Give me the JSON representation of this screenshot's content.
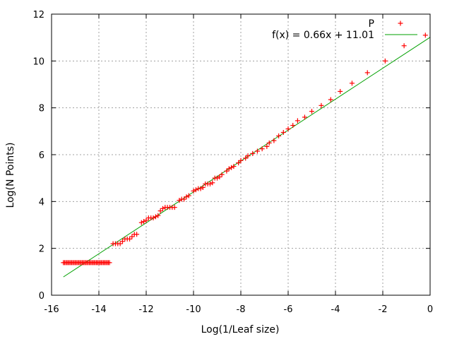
{
  "chart_data": {
    "type": "scatter",
    "xlabel": "Log(1/Leaf size)",
    "ylabel": "Log(N Points)",
    "xlim": [
      -16,
      0
    ],
    "ylim": [
      0,
      12
    ],
    "xticks": [
      "-16",
      "-14",
      "-12",
      "-10",
      "-8",
      "-6",
      "-4",
      "-2",
      "0"
    ],
    "yticks": [
      "0",
      "2",
      "4",
      "6",
      "8",
      "10",
      "12"
    ],
    "grid": true,
    "legend_position": "top-right",
    "colors": {
      "points": "#ff0000",
      "fit": "#00a000"
    },
    "series": [
      {
        "name": "P",
        "marker": "plus",
        "color": "#ff0000",
        "flat_run": {
          "x_from": -15.5,
          "x_to": -13.55,
          "y": 1.39
        },
        "points": [
          [
            -13.4,
            2.2
          ],
          [
            -13.3,
            2.2
          ],
          [
            -13.2,
            2.2
          ],
          [
            -13.1,
            2.2
          ],
          [
            -13.0,
            2.3
          ],
          [
            -12.9,
            2.4
          ],
          [
            -12.8,
            2.4
          ],
          [
            -12.7,
            2.4
          ],
          [
            -12.6,
            2.5
          ],
          [
            -12.5,
            2.6
          ],
          [
            -12.4,
            2.6
          ],
          [
            -12.2,
            3.1
          ],
          [
            -12.1,
            3.15
          ],
          [
            -12.0,
            3.2
          ],
          [
            -11.9,
            3.3
          ],
          [
            -11.8,
            3.3
          ],
          [
            -11.7,
            3.3
          ],
          [
            -11.6,
            3.35
          ],
          [
            -11.5,
            3.4
          ],
          [
            -11.4,
            3.6
          ],
          [
            -11.3,
            3.7
          ],
          [
            -11.2,
            3.75
          ],
          [
            -11.1,
            3.75
          ],
          [
            -11.0,
            3.75
          ],
          [
            -10.9,
            3.75
          ],
          [
            -10.8,
            3.75
          ],
          [
            -10.6,
            4.05
          ],
          [
            -10.5,
            4.1
          ],
          [
            -10.4,
            4.1
          ],
          [
            -10.3,
            4.2
          ],
          [
            -10.2,
            4.25
          ],
          [
            -10.0,
            4.45
          ],
          [
            -9.9,
            4.5
          ],
          [
            -9.8,
            4.55
          ],
          [
            -9.7,
            4.55
          ],
          [
            -9.6,
            4.6
          ],
          [
            -9.5,
            4.75
          ],
          [
            -9.4,
            4.75
          ],
          [
            -9.3,
            4.75
          ],
          [
            -9.2,
            4.8
          ],
          [
            -9.1,
            5.0
          ],
          [
            -9.0,
            5.0
          ],
          [
            -8.9,
            5.05
          ],
          [
            -8.8,
            5.15
          ],
          [
            -8.6,
            5.3
          ],
          [
            -8.5,
            5.4
          ],
          [
            -8.4,
            5.45
          ],
          [
            -8.3,
            5.5
          ],
          [
            -8.1,
            5.65
          ],
          [
            -8.0,
            5.75
          ],
          [
            -7.8,
            5.85
          ],
          [
            -7.7,
            5.95
          ],
          [
            -7.5,
            6.05
          ],
          [
            -7.3,
            6.15
          ],
          [
            -7.1,
            6.25
          ],
          [
            -6.9,
            6.35
          ],
          [
            -6.8,
            6.5
          ],
          [
            -6.6,
            6.6
          ],
          [
            -6.4,
            6.8
          ],
          [
            -6.2,
            6.95
          ],
          [
            -6.0,
            7.1
          ],
          [
            -5.8,
            7.25
          ],
          [
            -5.6,
            7.45
          ],
          [
            -5.3,
            7.6
          ],
          [
            -5.0,
            7.85
          ],
          [
            -4.6,
            8.1
          ],
          [
            -4.2,
            8.35
          ],
          [
            -3.8,
            8.7
          ],
          [
            -3.3,
            9.05
          ],
          [
            -2.65,
            9.5
          ],
          [
            -1.9,
            10.0
          ],
          [
            -1.1,
            10.65
          ],
          [
            -0.2,
            11.1
          ]
        ]
      },
      {
        "name": "f(x) = 0.66x + 11.01",
        "kind": "line",
        "color": "#00a000",
        "slope": 0.66,
        "intercept": 11.01,
        "x_range": [
          -15.5,
          0
        ]
      }
    ]
  }
}
